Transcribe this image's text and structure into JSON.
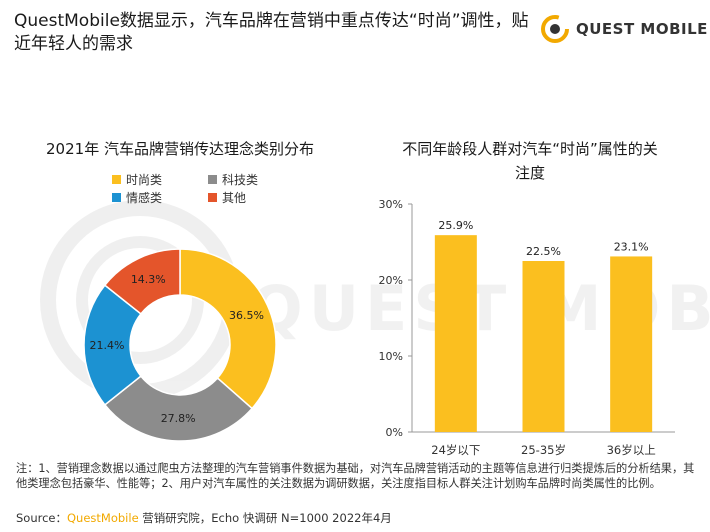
{
  "header": {
    "title": "QuestMobile数据显示，汽车品牌在营销中重点传达“时尚”调性，贴近年轻人的需求"
  },
  "logo": {
    "text": "QUEST MOBILE",
    "icon": "questmobile-logo-icon"
  },
  "colors": {
    "yellow": "#FBBF1F",
    "gray": "#8C8C8C",
    "blue": "#1C92D2",
    "red": "#E4552B",
    "accent": "#F2A900"
  },
  "chart_data": [
    {
      "type": "pie",
      "title": "2021年 汽车品牌营销传达理念类别分布",
      "donut": true,
      "categories": [
        "时尚类",
        "科技类",
        "情感类",
        "其他"
      ],
      "values": [
        36.5,
        27.8,
        21.4,
        14.3
      ],
      "labels": [
        "36.5%",
        "27.8%",
        "21.4%",
        "14.3%"
      ],
      "legend_position": "top-left"
    },
    {
      "type": "bar",
      "title": "不同年龄段人群对汽车“时尚”属性的关注度",
      "categories": [
        "24岁以下",
        "25-35岁",
        "36岁以上"
      ],
      "values": [
        25.9,
        22.5,
        23.1
      ],
      "labels": [
        "25.9%",
        "22.5%",
        "23.1%"
      ],
      "ylim": [
        0,
        30
      ],
      "yticks": [
        "0%",
        "10%",
        "20%",
        "30%"
      ],
      "grid": false
    }
  ],
  "footnote": {
    "text": "注：1、营销理念数据以通过爬虫方法整理的汽车营销事件数据为基础，对汽车品牌营销活动的主题等信息进行归类提炼后的分析结果，其他类理念包括豪华、性能等；2、用户对汽车属性的关注数据为调研数据，关注度指目标人群关注计划购车品牌时尚类属性的比例。"
  },
  "source": {
    "prefix": "Source：",
    "brand": "QuestMobile",
    "suffix": " 营销研究院，Echo 快调研 N=1000 2022年4月"
  }
}
